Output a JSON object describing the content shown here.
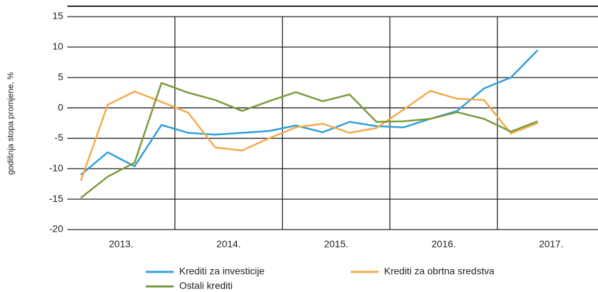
{
  "chart_data": {
    "type": "line",
    "y_label": "godišnja stopa promjene, %",
    "categories": [
      null,
      "2013.",
      null,
      null,
      null,
      "2014.",
      null,
      null,
      null,
      "2015.",
      null,
      null,
      null,
      "2016.",
      null,
      null,
      null,
      "2017."
    ],
    "series": [
      {
        "name": "Krediti za investicije",
        "color": "#2e9fd8",
        "values": [
          -11,
          -7.3,
          -9.6,
          -2.8,
          -4.1,
          -4.4,
          -4.1,
          -3.8,
          -2.9,
          -4.0,
          -2.3,
          -3.0,
          -3.2,
          -1.8,
          -0.5,
          3.2,
          5.0,
          9.5
        ]
      },
      {
        "name": "Krediti za obrtna sredstva",
        "color": "#f5a94a",
        "values": [
          -12,
          0.5,
          2.7,
          1.0,
          -0.8,
          -6.5,
          -7.0,
          -5.0,
          -3.2,
          -2.6,
          -4.1,
          -3.3,
          -0.3,
          2.8,
          1.5,
          1.3,
          -4.2,
          -2.5
        ]
      },
      {
        "name": "Ostali krediti",
        "color": "#7a9a3a",
        "values": [
          -14.8,
          -11.3,
          -9.0,
          4.1,
          2.5,
          1.3,
          -0.5,
          1.1,
          2.6,
          1.1,
          2.2,
          -2.3,
          -2.2,
          -1.8,
          -0.7,
          -1.8,
          -3.9,
          -2.2
        ]
      }
    ],
    "ylim": [
      -20,
      15
    ],
    "yticks": [
      -20,
      -15,
      -10,
      -5,
      0,
      5,
      10,
      15
    ],
    "grid": true
  }
}
